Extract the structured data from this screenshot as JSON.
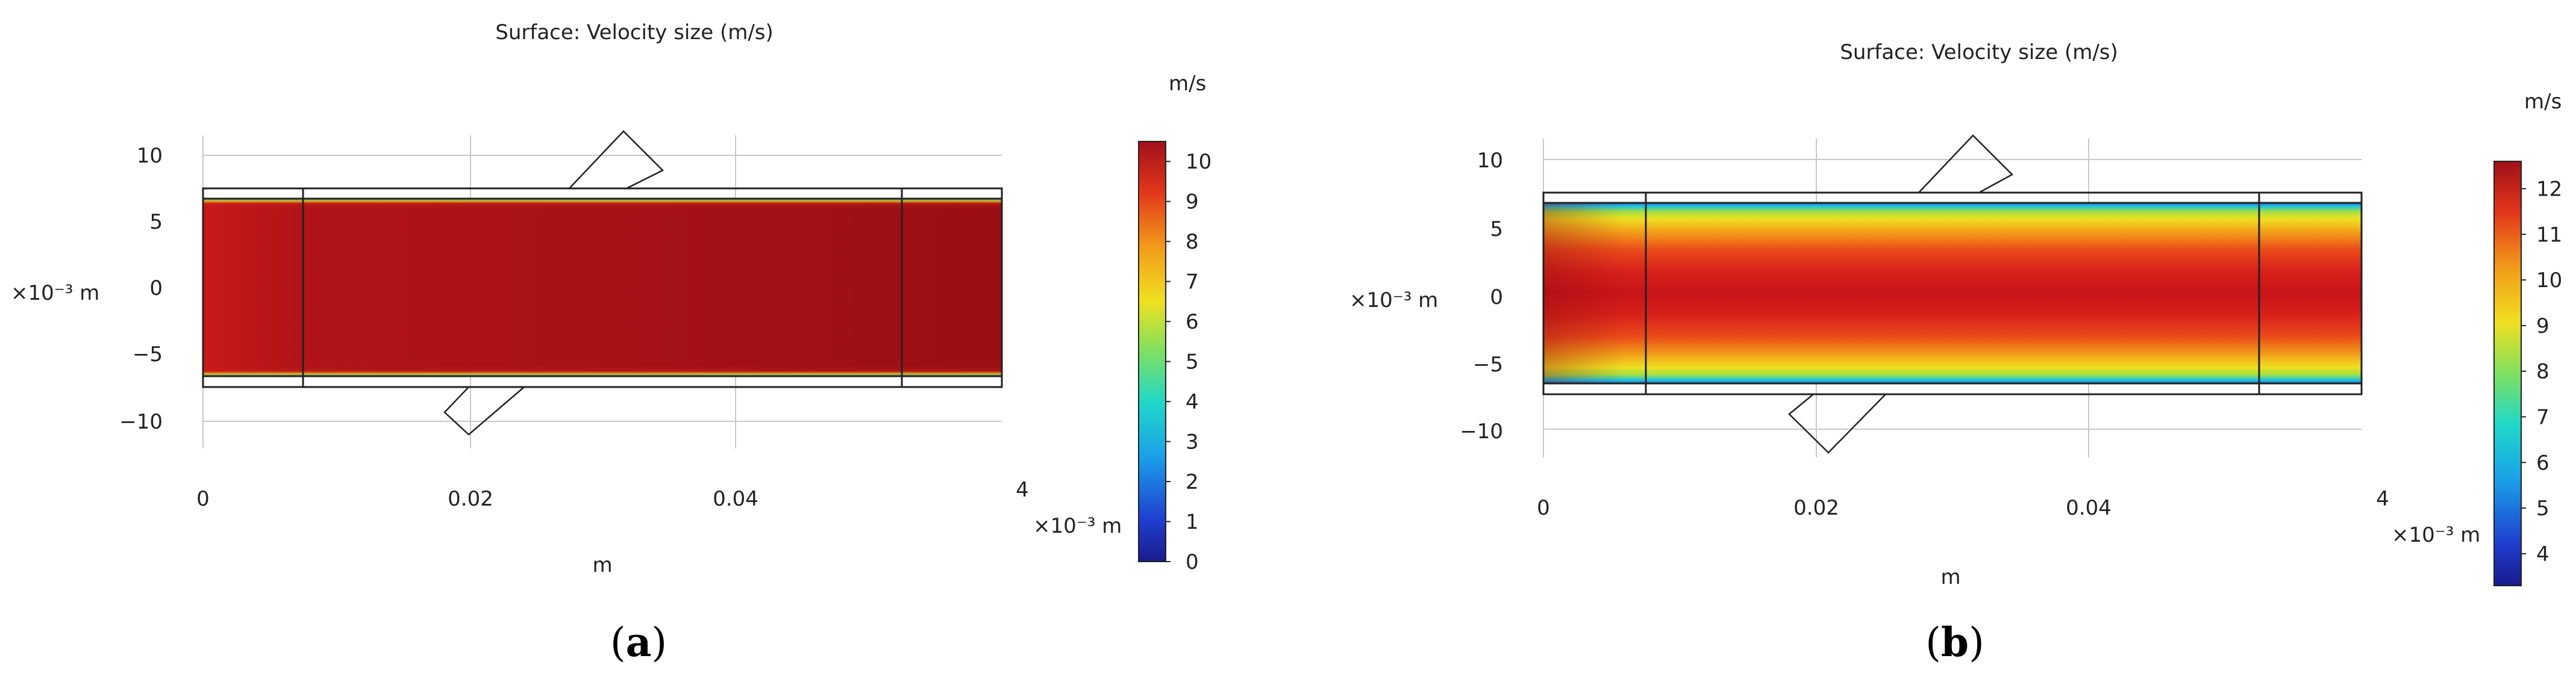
{
  "chart_data": [
    {
      "type": "heatmap",
      "panel": "a",
      "caption": "(a)",
      "title": "Surface: Velocity size (m/s)",
      "x_axis": {
        "ticks": [
          "0",
          "0.02",
          "0.04"
        ],
        "tick_values": [
          0,
          0.02,
          0.04
        ],
        "end_label": "4",
        "multiplier": "×10⁻³ m",
        "label": "m"
      },
      "y_axis": {
        "ticks": [
          "10",
          "5",
          "0",
          "−5",
          "−10"
        ],
        "tick_values": [
          10,
          5,
          0,
          -5,
          -10
        ],
        "label": "×10⁻³ m"
      },
      "colorbar": {
        "unit": "m/s",
        "ticks": [
          "10",
          "9",
          "8",
          "7",
          "6",
          "5",
          "4",
          "3",
          "2",
          "1",
          "0"
        ],
        "min": 0,
        "max": 10.5
      },
      "field": "nearly uniform core velocity ≈ 10 m/s across channel, thin low-velocity boundary layer at walls"
    },
    {
      "type": "heatmap",
      "panel": "b",
      "caption": "(b)",
      "title": "Surface: Velocity size (m/s)",
      "x_axis": {
        "ticks": [
          "0",
          "0.02",
          "0.04"
        ],
        "tick_values": [
          0,
          0.02,
          0.04
        ],
        "end_label": "4",
        "multiplier": "×10⁻³ m",
        "label": "m"
      },
      "y_axis": {
        "ticks": [
          "10",
          "5",
          "0",
          "−5",
          "−10"
        ],
        "tick_values": [
          10,
          5,
          0,
          -5,
          -10
        ],
        "label": "×10⁻³ m"
      },
      "colorbar": {
        "unit": "m/s",
        "ticks": [
          "12",
          "11",
          "10",
          "9",
          "8",
          "7",
          "6",
          "5",
          "4"
        ],
        "min": 3.3,
        "max": 12.6
      },
      "field": "parabolic-like profile, max ≈ 12.5 m/s at centerline, decreasing toward walls"
    }
  ]
}
